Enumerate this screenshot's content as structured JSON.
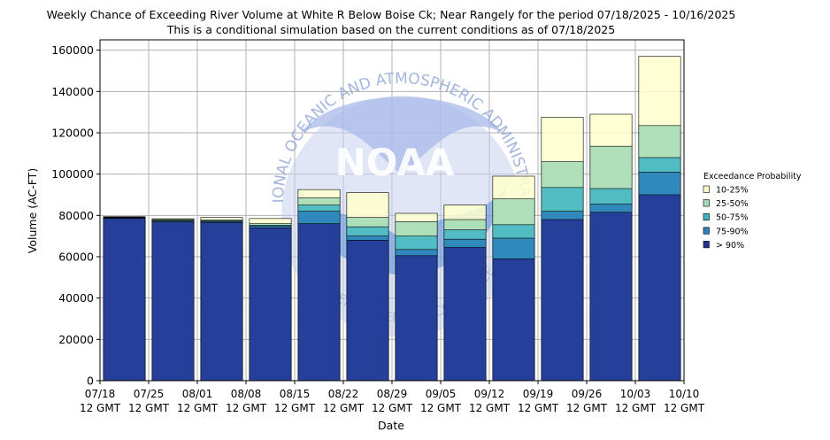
{
  "chart_data": {
    "type": "bar",
    "stacked": true,
    "title": "Weekly Chance of Exceeding River Volume at White R Below Boise Ck; Near Rangely for the period 07/18/2025 - 10/16/2025",
    "subtitle": "This is a conditional simulation based on the current conditions as of 07/18/2025",
    "xlabel": "Date",
    "ylabel": "Volume (AC-FT)",
    "ylim": [
      0,
      165000
    ],
    "yticks": [
      0,
      20000,
      40000,
      60000,
      80000,
      100000,
      120000,
      140000,
      160000
    ],
    "xticks": [
      {
        "line1": "07/18",
        "line2": "12 GMT"
      },
      {
        "line1": "07/25",
        "line2": "12 GMT"
      },
      {
        "line1": "08/01",
        "line2": "12 GMT"
      },
      {
        "line1": "08/08",
        "line2": "12 GMT"
      },
      {
        "line1": "08/15",
        "line2": "12 GMT"
      },
      {
        "line1": "08/22",
        "line2": "12 GMT"
      },
      {
        "line1": "08/29",
        "line2": "12 GMT"
      },
      {
        "line1": "09/05",
        "line2": "12 GMT"
      },
      {
        "line1": "09/12",
        "line2": "12 GMT"
      },
      {
        "line1": "09/19",
        "line2": "12 GMT"
      },
      {
        "line1": "09/26",
        "line2": "12 GMT"
      },
      {
        "line1": "10/03",
        "line2": "12 GMT"
      },
      {
        "line1": "10/10",
        "line2": "12 GMT"
      }
    ],
    "grid": true,
    "legend": {
      "title": "Exceedance Probability",
      "placement": "right",
      "entries": [
        {
          "label": "10-25%",
          "color": "#ffffcc"
        },
        {
          "label": "25-50%",
          "color": "#a1dab4"
        },
        {
          "label": "50-75%",
          "color": "#41b6c4"
        },
        {
          "label": "75-90%",
          "color": "#2c7fb8"
        },
        {
          "label": "> 90%",
          "color": "#253494"
        }
      ]
    },
    "bar_tops_by_level": {
      "levels": [
        "> 90%",
        "75-90%",
        "50-75%",
        "25-50%",
        "10-25%"
      ],
      "weeks": [
        [
          78500,
          78800,
          79000,
          79200,
          79400
        ],
        [
          76800,
          77200,
          77600,
          78000,
          78400
        ],
        [
          76500,
          77000,
          77400,
          77800,
          79000
        ],
        [
          74000,
          74700,
          75300,
          76000,
          78500
        ],
        [
          76000,
          82000,
          85000,
          88500,
          92500
        ],
        [
          68000,
          70000,
          74500,
          79000,
          91000
        ],
        [
          60500,
          63500,
          70000,
          77000,
          81000
        ],
        [
          64500,
          68500,
          73000,
          78000,
          85000
        ],
        [
          59000,
          69000,
          75500,
          88000,
          99000
        ],
        [
          78000,
          82000,
          93500,
          106000,
          127500
        ],
        [
          81500,
          85500,
          93000,
          113500,
          129000
        ],
        [
          90000,
          101000,
          108000,
          123500,
          157000
        ]
      ]
    }
  },
  "watermark": {
    "logo_text": "NOAA",
    "ring_text_top": "NATIONAL OCEANIC AND ATMOSPHERIC ADMINISTRATION",
    "ring_text_bottom": "U.S. DEPARTMENT OF COMMERCE"
  }
}
